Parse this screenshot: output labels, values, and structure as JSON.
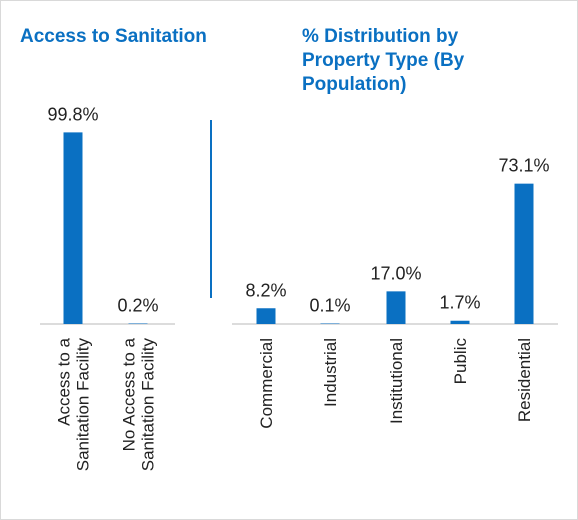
{
  "colors": {
    "bar": "#0a70c2",
    "title": "#0a70c2",
    "text": "#222222",
    "axis": "#c8c8c8",
    "divider": "#0a70c2"
  },
  "titles": {
    "left": "Access to Sanitation",
    "right": "% Distribution by Property Type (By Population)"
  },
  "chart_data": [
    {
      "type": "bar",
      "title": "Access to Sanitation",
      "categories": [
        "Access to a Sanitation Facility",
        "No Access to a Sanitation Facility"
      ],
      "category_lines": [
        [
          "Access to a",
          "Sanitation Facility"
        ],
        [
          "No Access to a",
          "Sanitation Facility"
        ]
      ],
      "values": [
        99.8,
        0.2
      ],
      "labels": [
        "99.8%",
        "0.2%"
      ],
      "ylim": [
        0,
        100
      ]
    },
    {
      "type": "bar",
      "title": "% Distribution by Property Type (By Population)",
      "categories": [
        "Commercial",
        "Industrial",
        "Institutional",
        "Public",
        "Residential"
      ],
      "category_lines": [
        [
          "Commercial"
        ],
        [
          "Industrial"
        ],
        [
          "Institutional"
        ],
        [
          "Public"
        ],
        [
          "Residential"
        ]
      ],
      "values": [
        8.2,
        0.1,
        17.0,
        1.7,
        73.1
      ],
      "labels": [
        "8.2%",
        "0.1%",
        "17.0%",
        "1.7%",
        "73.1%"
      ],
      "ylim": [
        0,
        100
      ]
    }
  ]
}
